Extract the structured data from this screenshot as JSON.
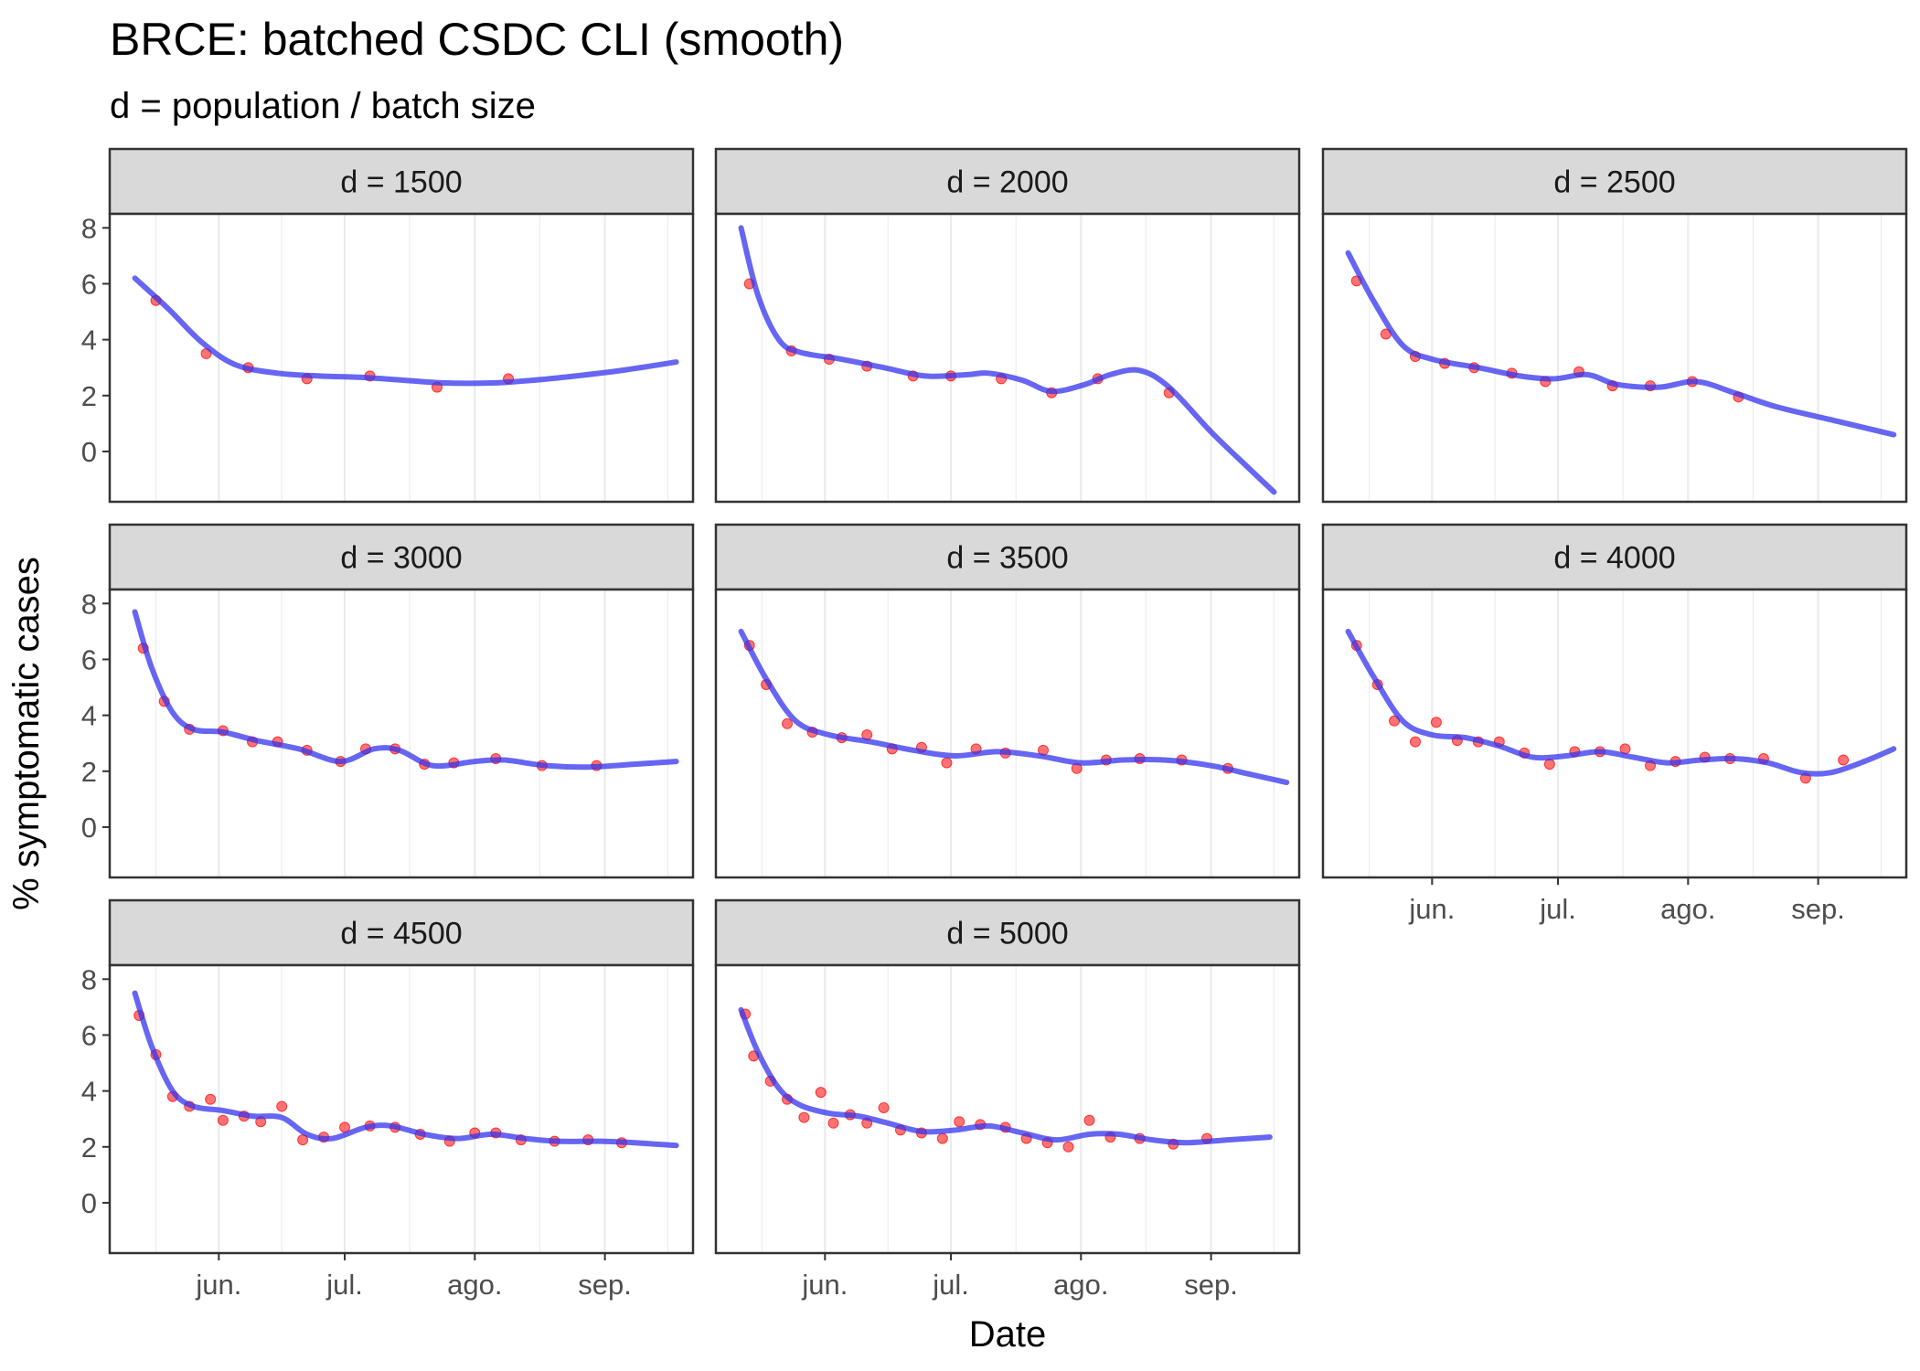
{
  "title": "BRCE: batched CSDC CLI (smooth)",
  "subtitle": "d = population / batch size",
  "chart_data": {
    "type": "line",
    "title": "BRCE: batched CSDC CLI (smooth)",
    "subtitle": "d = population / batch size",
    "xlabel": "Date",
    "ylabel": "% symptomatic cases",
    "x_tick_labels": [
      "jun.",
      "jul.",
      "ago.",
      "sep."
    ],
    "x_tick_dates": [
      "2020-06-01",
      "2020-07-01",
      "2020-08-01",
      "2020-09-01"
    ],
    "y_ticks": [
      0,
      2,
      4,
      6,
      8
    ],
    "ylim": [
      -1.8,
      8.5
    ],
    "xlim": [
      "2020-05-06",
      "2020-09-22"
    ],
    "grid": true,
    "point_color": "#ff0000",
    "line_color": "#3333ee",
    "panel_layout": {
      "columns": 3,
      "rows": 3
    },
    "panels": [
      {
        "label": "d = 1500",
        "points": [
          [
            "2020-05-17",
            5.4
          ],
          [
            "2020-05-29",
            3.5
          ],
          [
            "2020-06-08",
            3.0
          ],
          [
            "2020-06-22",
            2.6
          ],
          [
            "2020-07-07",
            2.7
          ],
          [
            "2020-07-23",
            2.3
          ],
          [
            "2020-08-09",
            2.6
          ]
        ],
        "smooth": [
          [
            "2020-05-12",
            6.2
          ],
          [
            "2020-05-20",
            5.1
          ],
          [
            "2020-05-28",
            3.9
          ],
          [
            "2020-06-05",
            3.1
          ],
          [
            "2020-06-15",
            2.8
          ],
          [
            "2020-06-25",
            2.7
          ],
          [
            "2020-07-05",
            2.65
          ],
          [
            "2020-07-15",
            2.55
          ],
          [
            "2020-07-25",
            2.45
          ],
          [
            "2020-08-05",
            2.45
          ],
          [
            "2020-08-15",
            2.55
          ],
          [
            "2020-08-25",
            2.7
          ],
          [
            "2020-09-05",
            2.9
          ],
          [
            "2020-09-18",
            3.2
          ]
        ]
      },
      {
        "label": "d = 2000",
        "points": [
          [
            "2020-05-14",
            6.0
          ],
          [
            "2020-05-24",
            3.6
          ],
          [
            "2020-06-02",
            3.3
          ],
          [
            "2020-06-11",
            3.05
          ],
          [
            "2020-06-22",
            2.7
          ],
          [
            "2020-07-01",
            2.7
          ],
          [
            "2020-07-13",
            2.6
          ],
          [
            "2020-07-25",
            2.1
          ],
          [
            "2020-08-05",
            2.6
          ],
          [
            "2020-08-22",
            2.1
          ]
        ],
        "smooth": [
          [
            "2020-05-12",
            8.0
          ],
          [
            "2020-05-16",
            5.6
          ],
          [
            "2020-05-21",
            4.0
          ],
          [
            "2020-05-26",
            3.55
          ],
          [
            "2020-06-05",
            3.3
          ],
          [
            "2020-06-15",
            3.0
          ],
          [
            "2020-06-25",
            2.7
          ],
          [
            "2020-07-05",
            2.75
          ],
          [
            "2020-07-10",
            2.8
          ],
          [
            "2020-07-18",
            2.55
          ],
          [
            "2020-07-25",
            2.15
          ],
          [
            "2020-08-02",
            2.4
          ],
          [
            "2020-08-08",
            2.75
          ],
          [
            "2020-08-15",
            2.9
          ],
          [
            "2020-08-22",
            2.3
          ],
          [
            "2020-09-01",
            0.7
          ],
          [
            "2020-09-10",
            -0.6
          ],
          [
            "2020-09-16",
            -1.45
          ]
        ]
      },
      {
        "label": "d = 2500",
        "points": [
          [
            "2020-05-14",
            6.1
          ],
          [
            "2020-05-21",
            4.2
          ],
          [
            "2020-05-28",
            3.4
          ],
          [
            "2020-06-04",
            3.15
          ],
          [
            "2020-06-11",
            3.0
          ],
          [
            "2020-06-20",
            2.8
          ],
          [
            "2020-06-28",
            2.5
          ],
          [
            "2020-07-06",
            2.85
          ],
          [
            "2020-07-14",
            2.35
          ],
          [
            "2020-07-23",
            2.35
          ],
          [
            "2020-08-02",
            2.5
          ],
          [
            "2020-08-13",
            1.95
          ]
        ],
        "smooth": [
          [
            "2020-05-12",
            7.1
          ],
          [
            "2020-05-18",
            5.4
          ],
          [
            "2020-05-25",
            3.8
          ],
          [
            "2020-06-01",
            3.3
          ],
          [
            "2020-06-12",
            3.0
          ],
          [
            "2020-06-22",
            2.7
          ],
          [
            "2020-06-30",
            2.6
          ],
          [
            "2020-07-08",
            2.75
          ],
          [
            "2020-07-15",
            2.4
          ],
          [
            "2020-07-25",
            2.3
          ],
          [
            "2020-08-03",
            2.5
          ],
          [
            "2020-08-12",
            2.1
          ],
          [
            "2020-08-22",
            1.6
          ],
          [
            "2020-09-05",
            1.1
          ],
          [
            "2020-09-19",
            0.6
          ]
        ]
      },
      {
        "label": "d = 3000",
        "points": [
          [
            "2020-05-14",
            6.4
          ],
          [
            "2020-05-19",
            4.5
          ],
          [
            "2020-05-25",
            3.5
          ],
          [
            "2020-06-02",
            3.45
          ],
          [
            "2020-06-09",
            3.05
          ],
          [
            "2020-06-15",
            3.05
          ],
          [
            "2020-06-22",
            2.75
          ],
          [
            "2020-06-30",
            2.35
          ],
          [
            "2020-07-06",
            2.8
          ],
          [
            "2020-07-13",
            2.8
          ],
          [
            "2020-07-20",
            2.25
          ],
          [
            "2020-07-27",
            2.3
          ],
          [
            "2020-08-06",
            2.45
          ],
          [
            "2020-08-17",
            2.2
          ],
          [
            "2020-08-30",
            2.2
          ]
        ],
        "smooth": [
          [
            "2020-05-12",
            7.7
          ],
          [
            "2020-05-16",
            5.7
          ],
          [
            "2020-05-21",
            4.1
          ],
          [
            "2020-05-26",
            3.5
          ],
          [
            "2020-06-02",
            3.4
          ],
          [
            "2020-06-10",
            3.1
          ],
          [
            "2020-06-20",
            2.8
          ],
          [
            "2020-06-30",
            2.35
          ],
          [
            "2020-07-08",
            2.8
          ],
          [
            "2020-07-14",
            2.75
          ],
          [
            "2020-07-22",
            2.2
          ],
          [
            "2020-08-01",
            2.35
          ],
          [
            "2020-08-08",
            2.4
          ],
          [
            "2020-08-18",
            2.2
          ],
          [
            "2020-08-28",
            2.15
          ],
          [
            "2020-09-08",
            2.25
          ],
          [
            "2020-09-18",
            2.35
          ]
        ]
      },
      {
        "label": "d = 3500",
        "points": [
          [
            "2020-05-14",
            6.5
          ],
          [
            "2020-05-18",
            5.1
          ],
          [
            "2020-05-23",
            3.7
          ],
          [
            "2020-05-29",
            3.4
          ],
          [
            "2020-06-05",
            3.2
          ],
          [
            "2020-06-11",
            3.3
          ],
          [
            "2020-06-17",
            2.8
          ],
          [
            "2020-06-24",
            2.85
          ],
          [
            "2020-06-30",
            2.3
          ],
          [
            "2020-07-07",
            2.8
          ],
          [
            "2020-07-14",
            2.65
          ],
          [
            "2020-07-23",
            2.75
          ],
          [
            "2020-07-31",
            2.1
          ],
          [
            "2020-08-07",
            2.4
          ],
          [
            "2020-08-15",
            2.45
          ],
          [
            "2020-08-25",
            2.4
          ],
          [
            "2020-09-05",
            2.1
          ]
        ],
        "smooth": [
          [
            "2020-05-12",
            7.0
          ],
          [
            "2020-05-18",
            5.3
          ],
          [
            "2020-05-25",
            3.8
          ],
          [
            "2020-06-02",
            3.3
          ],
          [
            "2020-06-12",
            3.05
          ],
          [
            "2020-06-22",
            2.75
          ],
          [
            "2020-07-02",
            2.55
          ],
          [
            "2020-07-12",
            2.7
          ],
          [
            "2020-07-22",
            2.55
          ],
          [
            "2020-08-01",
            2.3
          ],
          [
            "2020-08-11",
            2.4
          ],
          [
            "2020-08-21",
            2.4
          ],
          [
            "2020-09-01",
            2.2
          ],
          [
            "2020-09-10",
            1.9
          ],
          [
            "2020-09-19",
            1.6
          ]
        ]
      },
      {
        "label": "d = 4000",
        "points": [
          [
            "2020-05-14",
            6.5
          ],
          [
            "2020-05-19",
            5.1
          ],
          [
            "2020-05-23",
            3.8
          ],
          [
            "2020-05-28",
            3.05
          ],
          [
            "2020-06-02",
            3.75
          ],
          [
            "2020-06-07",
            3.1
          ],
          [
            "2020-06-12",
            3.05
          ],
          [
            "2020-06-17",
            3.05
          ],
          [
            "2020-06-23",
            2.65
          ],
          [
            "2020-06-29",
            2.25
          ],
          [
            "2020-07-05",
            2.7
          ],
          [
            "2020-07-11",
            2.7
          ],
          [
            "2020-07-17",
            2.8
          ],
          [
            "2020-07-23",
            2.2
          ],
          [
            "2020-07-29",
            2.35
          ],
          [
            "2020-08-05",
            2.5
          ],
          [
            "2020-08-11",
            2.45
          ],
          [
            "2020-08-19",
            2.45
          ],
          [
            "2020-08-29",
            1.75
          ],
          [
            "2020-09-07",
            2.4
          ]
        ],
        "smooth": [
          [
            "2020-05-12",
            7.0
          ],
          [
            "2020-05-18",
            5.4
          ],
          [
            "2020-05-25",
            3.8
          ],
          [
            "2020-06-01",
            3.3
          ],
          [
            "2020-06-09",
            3.2
          ],
          [
            "2020-06-17",
            2.9
          ],
          [
            "2020-06-25",
            2.5
          ],
          [
            "2020-07-03",
            2.55
          ],
          [
            "2020-07-11",
            2.7
          ],
          [
            "2020-07-19",
            2.5
          ],
          [
            "2020-07-27",
            2.3
          ],
          [
            "2020-08-04",
            2.4
          ],
          [
            "2020-08-12",
            2.45
          ],
          [
            "2020-08-20",
            2.3
          ],
          [
            "2020-08-28",
            1.95
          ],
          [
            "2020-09-04",
            1.95
          ],
          [
            "2020-09-12",
            2.35
          ],
          [
            "2020-09-19",
            2.8
          ]
        ]
      },
      {
        "label": "d = 4500",
        "points": [
          [
            "2020-05-13",
            6.7
          ],
          [
            "2020-05-17",
            5.3
          ],
          [
            "2020-05-21",
            3.8
          ],
          [
            "2020-05-25",
            3.45
          ],
          [
            "2020-05-30",
            3.7
          ],
          [
            "2020-06-02",
            2.95
          ],
          [
            "2020-06-07",
            3.1
          ],
          [
            "2020-06-11",
            2.9
          ],
          [
            "2020-06-16",
            3.45
          ],
          [
            "2020-06-21",
            2.25
          ],
          [
            "2020-06-26",
            2.35
          ],
          [
            "2020-07-01",
            2.7
          ],
          [
            "2020-07-07",
            2.75
          ],
          [
            "2020-07-13",
            2.7
          ],
          [
            "2020-07-19",
            2.45
          ],
          [
            "2020-07-26",
            2.2
          ],
          [
            "2020-08-01",
            2.5
          ],
          [
            "2020-08-06",
            2.5
          ],
          [
            "2020-08-12",
            2.25
          ],
          [
            "2020-08-20",
            2.2
          ],
          [
            "2020-08-28",
            2.25
          ],
          [
            "2020-09-05",
            2.15
          ]
        ],
        "smooth": [
          [
            "2020-05-12",
            7.5
          ],
          [
            "2020-05-16",
            5.6
          ],
          [
            "2020-05-21",
            4.0
          ],
          [
            "2020-05-26",
            3.45
          ],
          [
            "2020-06-02",
            3.3
          ],
          [
            "2020-06-09",
            3.1
          ],
          [
            "2020-06-16",
            3.05
          ],
          [
            "2020-06-22",
            2.45
          ],
          [
            "2020-06-28",
            2.3
          ],
          [
            "2020-07-06",
            2.7
          ],
          [
            "2020-07-12",
            2.75
          ],
          [
            "2020-07-20",
            2.45
          ],
          [
            "2020-07-28",
            2.3
          ],
          [
            "2020-08-05",
            2.45
          ],
          [
            "2020-08-13",
            2.3
          ],
          [
            "2020-08-21",
            2.2
          ],
          [
            "2020-08-31",
            2.2
          ],
          [
            "2020-09-08",
            2.15
          ],
          [
            "2020-09-18",
            2.05
          ]
        ]
      },
      {
        "label": "d = 5000",
        "points": [
          [
            "2020-05-13",
            6.75
          ],
          [
            "2020-05-15",
            5.25
          ],
          [
            "2020-05-19",
            4.35
          ],
          [
            "2020-05-23",
            3.7
          ],
          [
            "2020-05-27",
            3.05
          ],
          [
            "2020-05-31",
            3.95
          ],
          [
            "2020-06-03",
            2.85
          ],
          [
            "2020-06-07",
            3.15
          ],
          [
            "2020-06-11",
            2.85
          ],
          [
            "2020-06-15",
            3.4
          ],
          [
            "2020-06-19",
            2.6
          ],
          [
            "2020-06-24",
            2.5
          ],
          [
            "2020-06-29",
            2.3
          ],
          [
            "2020-07-03",
            2.9
          ],
          [
            "2020-07-08",
            2.8
          ],
          [
            "2020-07-14",
            2.7
          ],
          [
            "2020-07-19",
            2.3
          ],
          [
            "2020-07-24",
            2.15
          ],
          [
            "2020-07-29",
            2.0
          ],
          [
            "2020-08-03",
            2.95
          ],
          [
            "2020-08-08",
            2.35
          ],
          [
            "2020-08-15",
            2.3
          ],
          [
            "2020-08-23",
            2.1
          ],
          [
            "2020-08-31",
            2.3
          ]
        ],
        "smooth": [
          [
            "2020-05-12",
            6.9
          ],
          [
            "2020-05-16",
            5.4
          ],
          [
            "2020-05-21",
            4.1
          ],
          [
            "2020-05-26",
            3.5
          ],
          [
            "2020-06-02",
            3.2
          ],
          [
            "2020-06-09",
            3.1
          ],
          [
            "2020-06-16",
            2.85
          ],
          [
            "2020-06-24",
            2.55
          ],
          [
            "2020-07-02",
            2.6
          ],
          [
            "2020-07-10",
            2.75
          ],
          [
            "2020-07-18",
            2.5
          ],
          [
            "2020-07-26",
            2.25
          ],
          [
            "2020-08-03",
            2.45
          ],
          [
            "2020-08-10",
            2.45
          ],
          [
            "2020-08-18",
            2.25
          ],
          [
            "2020-08-26",
            2.15
          ],
          [
            "2020-09-05",
            2.25
          ],
          [
            "2020-09-15",
            2.35
          ]
        ]
      }
    ]
  }
}
